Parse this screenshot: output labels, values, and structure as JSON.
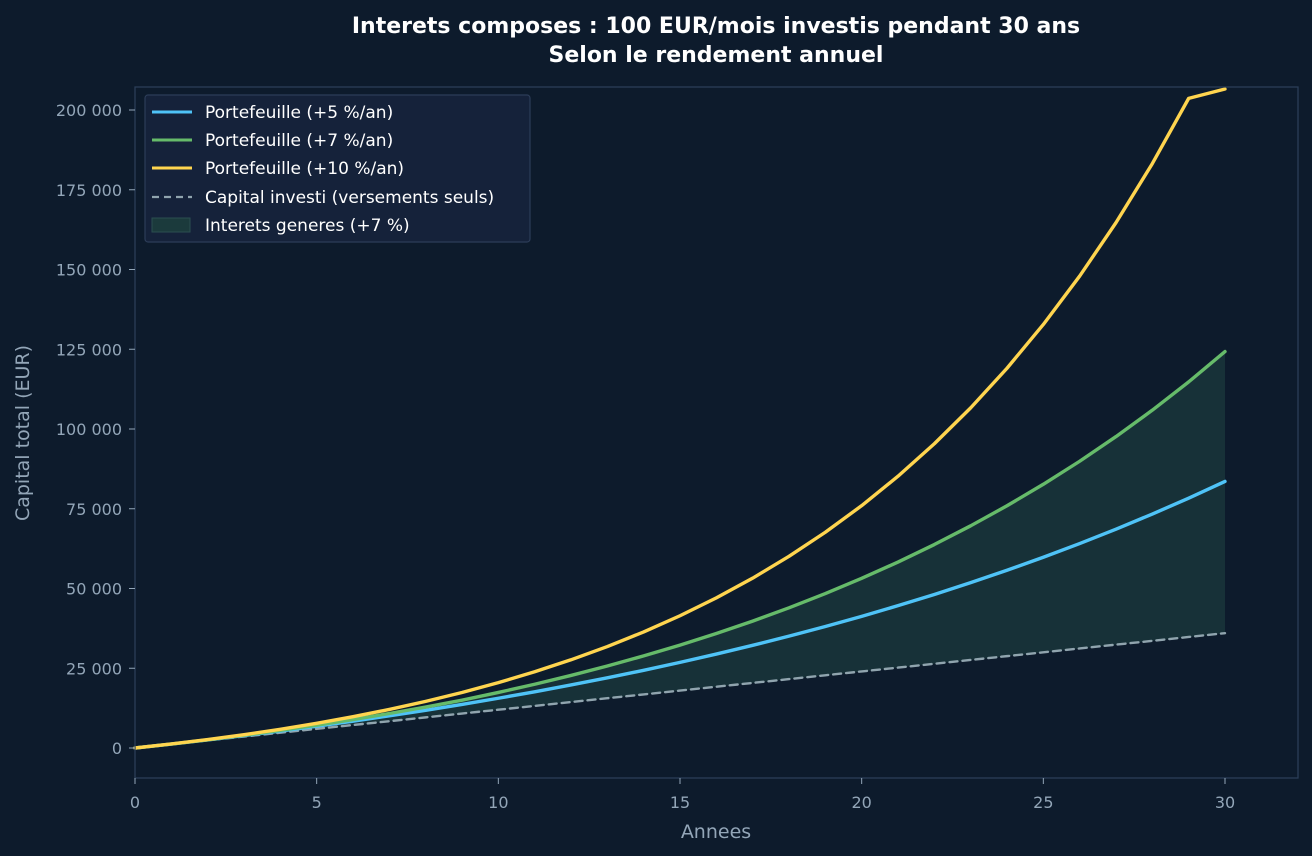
{
  "chart_data": {
    "type": "line",
    "title": "Interets composes : 100 EUR/mois investis pendant 30 ans",
    "subtitle": "Selon le rendement annuel",
    "xlabel": "Annees",
    "ylabel": "Capital total (EUR)",
    "xlim": [
      0,
      32
    ],
    "ylim": [
      -9000,
      207000
    ],
    "x_ticks": [
      0,
      5,
      10,
      15,
      20,
      25,
      30
    ],
    "y_ticks": [
      0,
      25000,
      50000,
      75000,
      100000,
      125000,
      150000,
      175000,
      200000
    ],
    "y_tick_labels": [
      "0",
      "25 000",
      "50 000",
      "75 000",
      "100 000",
      "125 000",
      "150 000",
      "175 000",
      "200 000"
    ],
    "x": [
      0,
      1,
      2,
      3,
      4,
      5,
      6,
      7,
      8,
      9,
      10,
      11,
      12,
      13,
      14,
      15,
      16,
      17,
      18,
      19,
      20,
      21,
      22,
      23,
      24,
      25,
      26,
      27,
      28,
      29,
      30
    ],
    "series": [
      {
        "name": "Portefeuille (+5 %/an)",
        "color": "#4fc3f7",
        "style": "solid",
        "values": [
          0,
          1233,
          2529,
          3891,
          5323,
          6829,
          8411,
          10075,
          11823,
          13661,
          15593,
          17624,
          19759,
          22003,
          24362,
          26841,
          29447,
          32186,
          35066,
          38092,
          41275,
          44619,
          48134,
          51829,
          55713,
          59795,
          64087,
          68597,
          73339,
          78323,
          83573
        ]
      },
      {
        "name": "Portefeuille (+7 %/an)",
        "color": "#66bb6a",
        "style": "solid",
        "values": [
          0,
          1241,
          2571,
          3998,
          5528,
          7167,
          8926,
          10811,
          12833,
          15000,
          17409,
          19985,
          22747,
          25704,
          28869,
          32259,
          35890,
          39778,
          43942,
          48401,
          53179,
          58296,
          63777,
          69648,
          75937,
          82673,
          89890,
          97620,
          105900,
          114771,
          124276
        ]
      },
      {
        "name": "Portefeuille (+10 %/an)",
        "color": "#ffd54f",
        "style": "solid",
        "values": [
          0,
          1257,
          2645,
          4179,
          5872,
          7743,
          9810,
          12094,
          14617,
          17405,
          20484,
          23888,
          27648,
          31801,
          36389,
          41459,
          47058,
          53246,
          60082,
          67633,
          75976,
          85193,
          95374,
          106621,
          119047,
          132772,
          147937,
          164689,
          183198,
          203644,
          226240
        ]
      },
      {
        "name": "Capital investi (versements seuls)",
        "color": "#90a4ae",
        "style": "dashed",
        "values": [
          0,
          1200,
          2400,
          3600,
          4800,
          6000,
          7200,
          8400,
          9600,
          10800,
          12000,
          13200,
          14400,
          15600,
          16800,
          18000,
          19200,
          20400,
          21600,
          22800,
          24000,
          25200,
          26400,
          27600,
          28800,
          30000,
          31200,
          32400,
          33600,
          34800,
          36000
        ]
      }
    ],
    "fill": {
      "name": "Interets generes (+7 %)",
      "color": "#1b3a3c",
      "between": [
        "Portefeuille (+7 %/an)",
        "Capital investi (versements seuls)"
      ]
    },
    "legend_position": "top-left",
    "grid": false
  }
}
